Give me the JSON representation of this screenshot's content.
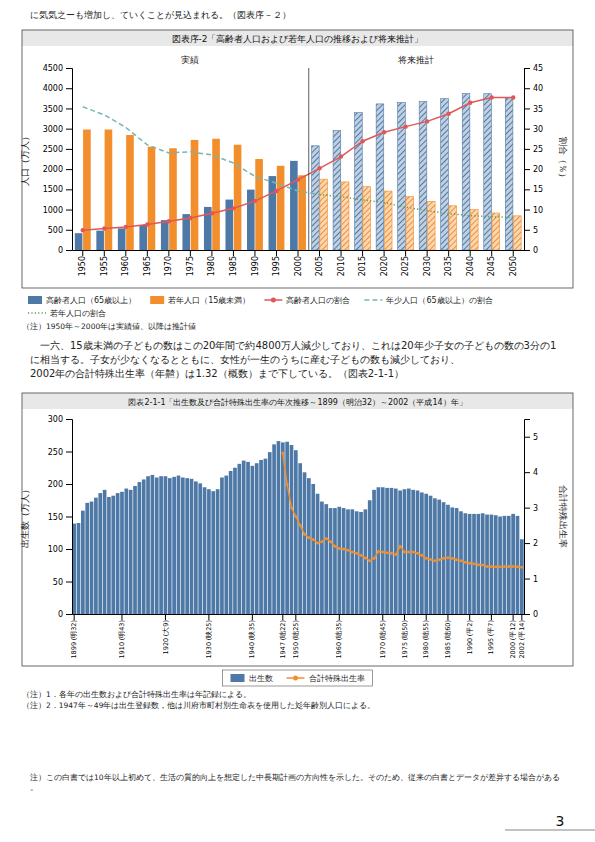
{
  "page_title": "に気気之ーも増加し、ていくことが見込まれる。（図表序－２）",
  "body_text": [
    "　一六、15歳未満の子どもの数はこの20年間で約4800万人減少しており、これは20年少子女の子どもの数の3分の1に相当する。子女が少なくなるとともに、女性が一生のうちに産む子どもの数も減少しており、",
    "2002年の合計特殊出生率（年齄）は1.32（概数）まで下している。（図表2-1-1）"
  ],
  "footer": "注）この白書では10年以上初めて、生活の質的向上を想定した中長期計画の方向性を示した。そのため、従来の白書とデータが差异する場合がある。",
  "page_number": "3",
  "chart_data": [
    {
      "type": "bar",
      "title": "図表序-2「高齢者人口および若年人口の推移および将来推計」",
      "categories": [
        "1950",
        "1955",
        "1960",
        "1965",
        "1970",
        "1975",
        "1980",
        "1985",
        "1990",
        "1995",
        "2000",
        "2005",
        "2010",
        "2015",
        "2020",
        "2025",
        "2030",
        "2035",
        "2040",
        "2045",
        "2050"
      ],
      "ylabel": "人口（万人）",
      "y2label": "割合（％）",
      "ylim": [
        0,
        4500
      ],
      "yticks": [
        0,
        500,
        1000,
        1500,
        2000,
        2500,
        3000,
        3500,
        4000,
        4500
      ],
      "y2lim": [
        0,
        45
      ],
      "y2ticks": [
        0,
        5,
        10,
        15,
        20,
        25,
        30,
        35,
        40,
        45
      ],
      "legend": "bottom",
      "annotations": [
        {
          "text": "実績",
          "x": [
            "1950",
            "2000"
          ]
        },
        {
          "text": "将来推計",
          "x": [
            "2005",
            "2050"
          ]
        }
      ],
      "notes": [
        "（注）1950年～2000年は実績値、以降は推計値"
      ],
      "series": [
        {
          "name": "高齢者人口（65歳以上）",
          "type": "bar",
          "values": [
            416,
            479,
            535,
            618,
            739,
            887,
            1065,
            1247,
            1493,
            1828,
            2204,
            2576,
            2950,
            3395,
            3612,
            3647,
            3667,
            3741,
            3868,
            3864,
            3764
          ]
        },
        {
          "name": "若年人口（15歳未満）",
          "type": "bar",
          "values": [
            2979,
            2979,
            2843,
            2553,
            2515,
            2722,
            2751,
            2603,
            2249,
            2082,
            1847,
            1752,
            1684,
            1569,
            1457,
            1324,
            1204,
            1093,
            997,
            915,
            845
          ]
        },
        {
          "name": "高齢者人口の割合",
          "type": "line",
          "axis": "y2",
          "marker": "circle",
          "line_style": "solid",
          "values": [
            4.9,
            5.3,
            5.7,
            6.3,
            7.1,
            7.9,
            9.1,
            10.3,
            12.1,
            14.6,
            17.4,
            20.2,
            23.1,
            26.9,
            29.1,
            30.5,
            31.8,
            33.7,
            36.4,
            37.7,
            37.7
          ]
        },
        {
          "name": "年少人口（65歳以上）の割合",
          "type": "line",
          "axis": "y2",
          "line_style": "dashed",
          "values": [
            35.4,
            33.4,
            30.3,
            26.0,
            24.0,
            24.3,
            23.5,
            21.5,
            18.2,
            16.5,
            14.6,
            13.7,
            null,
            null,
            null,
            null,
            null,
            null,
            null,
            null,
            null
          ]
        },
        {
          "name": "若年人口の割合",
          "type": "line",
          "axis": "y2",
          "line_style": "dotted",
          "values": [
            null,
            null,
            null,
            null,
            null,
            null,
            null,
            null,
            null,
            null,
            null,
            13.7,
            13.2,
            12.4,
            11.7,
            10.6,
            9.7,
            9.0,
            8.5,
            8.2,
            8.1
          ]
        }
      ]
    },
    {
      "type": "bar",
      "title": "図表2-1-1「出生数及び合計特殊出生率の年次推移～1899（明治32）～2002（平成14）年」",
      "categories": [
        "1899\n(明32)",
        null,
        null,
        null,
        null,
        null,
        null,
        null,
        null,
        null,
        null,
        "1910\n(明43)",
        null,
        null,
        null,
        null,
        null,
        null,
        null,
        null,
        null,
        "1920\n(大9)",
        null,
        null,
        null,
        null,
        null,
        null,
        null,
        null,
        null,
        "1930\n(映25)",
        null,
        null,
        null,
        null,
        null,
        null,
        null,
        null,
        null,
        "1940\n(映35)",
        null,
        null,
        null,
        null,
        null,
        null,
        "1947\n(昢22)",
        null,
        null,
        "1950\n(昢25)",
        null,
        null,
        null,
        null,
        null,
        null,
        null,
        null,
        null,
        "1960\n(昢35)",
        null,
        null,
        null,
        null,
        null,
        null,
        null,
        null,
        null,
        "1970\n(昢45)",
        null,
        null,
        null,
        null,
        "1975\n(昢50)",
        null,
        null,
        null,
        null,
        "1980\n(昢55)",
        null,
        null,
        null,
        null,
        "1985\n(昢60)",
        null,
        null,
        null,
        null,
        "1990\n(平2)",
        null,
        null,
        null,
        null,
        "1995\n(平7)",
        null,
        null,
        null,
        null,
        "2000\n(平12)",
        null,
        "2002\n(平14)"
      ],
      "ylabel": "出生数（万人）",
      "y2label": "合計特殊出生率",
      "ylim": [
        0,
        300
      ],
      "yticks": [
        0,
        50,
        100,
        150,
        200,
        250,
        300
      ],
      "y2lim": [
        0,
        5.5
      ],
      "y2ticks": [
        0,
        1,
        2,
        3,
        4,
        5
      ],
      "legend": "bottom",
      "notes": [
        "（注）1．各年の出生数および合計特殊出生率は年記録による。",
        "（注）2．1947年～49年は出生登録数，他は川府市町村別生命表を使用した彣年齢別人口による。"
      ],
      "series": [
        {
          "name": "出生数",
          "type": "bar",
          "values": [
            139,
            140,
            159,
            171,
            173,
            179,
            186,
            191,
            180,
            182,
            186,
            188,
            193,
            191,
            197,
            203,
            207,
            212,
            214,
            210,
            212,
            212,
            209,
            211,
            213,
            210,
            209,
            208,
            204,
            201,
            195,
            192,
            189,
            192,
            210,
            213,
            220,
            225,
            231,
            236,
            234,
            228,
            232,
            237,
            239,
            249,
            261,
            266,
            264,
            265,
            260,
            252,
            232,
            218,
            209,
            200,
            185,
            173,
            169,
            163,
            163,
            165,
            163,
            161,
            161,
            158,
            157,
            161,
            175,
            191,
            195,
            195,
            194,
            194,
            193,
            190,
            192,
            193,
            191,
            190,
            187,
            185,
            182,
            178,
            176,
            172,
            168,
            164,
            163,
            158,
            155,
            154,
            154,
            154,
            155,
            153,
            153,
            152,
            150,
            151,
            151,
            154,
            151,
            115
          ]
        },
        {
          "name": "合計特殊出生率",
          "type": "line",
          "axis": "y2",
          "marker": "circle",
          "line_style": "solid",
          "values": [
            null,
            null,
            null,
            null,
            null,
            null,
            null,
            null,
            null,
            null,
            null,
            null,
            null,
            null,
            null,
            null,
            null,
            null,
            null,
            null,
            null,
            null,
            null,
            null,
            null,
            null,
            null,
            null,
            null,
            null,
            null,
            null,
            null,
            null,
            null,
            null,
            null,
            null,
            null,
            null,
            null,
            null,
            null,
            null,
            null,
            null,
            null,
            null,
            4.54,
            3.65,
            3.0,
            2.75,
            2.5,
            2.25,
            2.15,
            2.1,
            2.0,
            2.04,
            2.13,
            2.04,
            1.91,
            1.85,
            1.83,
            1.8,
            1.75,
            1.71,
            1.66,
            1.58,
            1.5,
            1.57,
            1.76,
            1.75,
            1.73,
            1.71,
            1.68,
            1.91,
            1.75,
            1.75,
            1.75,
            1.71,
            1.66,
            1.57,
            1.54,
            1.5,
            1.53,
            1.57,
            1.59,
            1.57,
            1.53,
            1.5,
            1.46,
            1.43,
            1.42,
            1.39,
            1.38,
            1.34,
            1.34,
            1.33,
            1.33,
            1.34,
            1.34,
            1.34,
            1.33,
            1.32
          ]
        }
      ]
    }
  ]
}
